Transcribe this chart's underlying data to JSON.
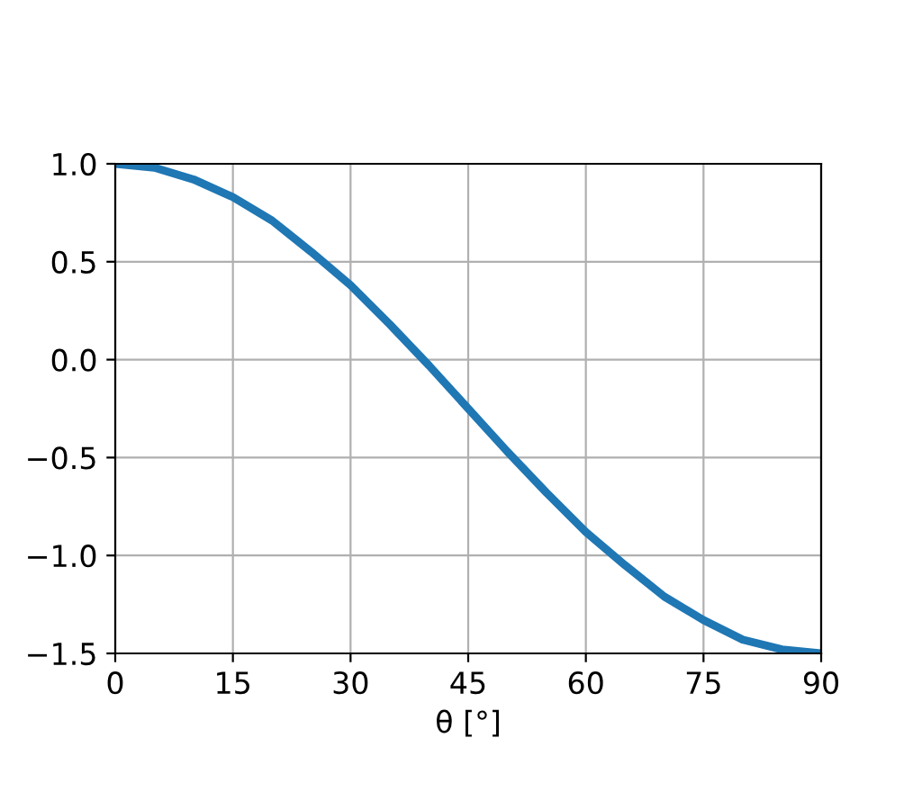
{
  "chart_data": {
    "type": "line",
    "xlabel": "θ [°]",
    "x": [
      0,
      5,
      10,
      15,
      20,
      25,
      30,
      35,
      40,
      45,
      50,
      55,
      60,
      65,
      70,
      75,
      80,
      85,
      90
    ],
    "series": [
      {
        "color": "#1f77b4",
        "values": [
          1.0,
          0.98,
          0.92,
          0.83,
          0.71,
          0.55,
          0.38,
          0.18,
          -0.03,
          -0.25,
          -0.47,
          -0.68,
          -0.88,
          -1.05,
          -1.21,
          -1.33,
          -1.43,
          -1.48,
          -1.5
        ]
      }
    ],
    "xlim": [
      0,
      90
    ],
    "xticks": [
      0,
      15,
      30,
      45,
      60,
      75,
      90
    ],
    "ylim": [
      -1.5,
      1.0
    ],
    "yticks": [
      {
        "value": -1.5,
        "label": "−1.5"
      },
      {
        "value": -1.0,
        "label": "−1.0"
      },
      {
        "value": -0.5,
        "label": "−0.5"
      },
      {
        "value": 0.0,
        "label": "0.0"
      },
      {
        "value": 0.5,
        "label": "0.5"
      },
      {
        "value": 1.0,
        "label": "1.0"
      }
    ],
    "grid": true,
    "marker": "none",
    "line_style": "solid"
  }
}
